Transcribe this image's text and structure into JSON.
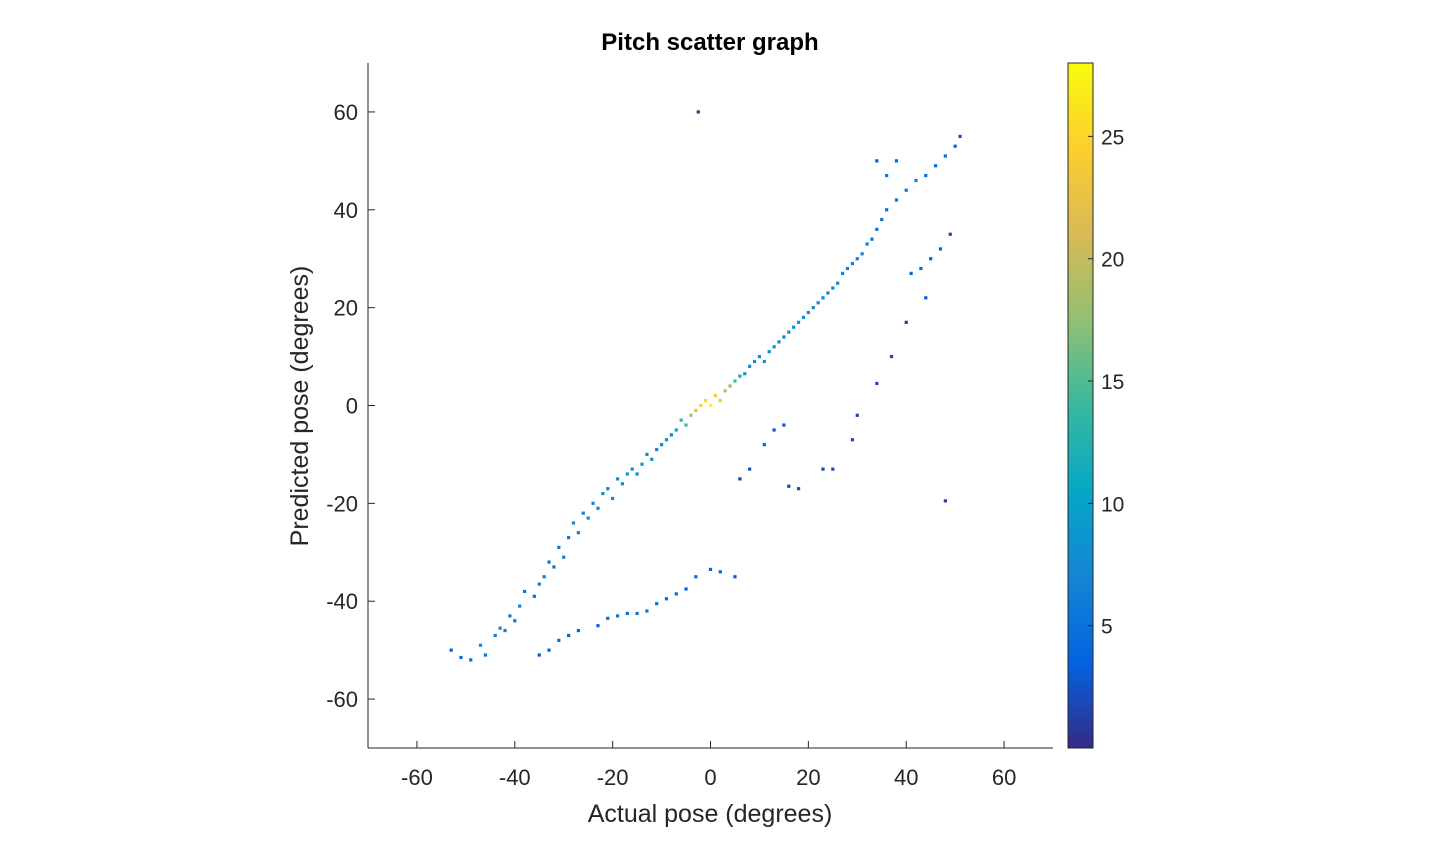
{
  "chart_data": {
    "type": "scatter",
    "title": "Pitch scatter graph",
    "xlabel": "Actual pose (degrees)",
    "ylabel": "Predicted pose (degrees)",
    "xlim": [
      -70,
      70
    ],
    "ylim": [
      -70,
      70
    ],
    "xticks": [
      -60,
      -40,
      -20,
      0,
      20,
      40,
      60
    ],
    "yticks": [
      -60,
      -40,
      -20,
      0,
      20,
      40,
      60
    ],
    "grid": false,
    "colorbar": {
      "colormap": "parula",
      "range": [
        0,
        28
      ],
      "ticks": [
        5,
        10,
        15,
        20,
        25
      ],
      "colors": [
        "#352a87",
        "#0363e1",
        "#1485d4",
        "#06a7c6",
        "#38b99e",
        "#92bf73",
        "#d9ba56",
        "#fcce2e",
        "#f9fb0e"
      ]
    },
    "series": [
      {
        "description": "dense main cluster along y = x, density encoded by color",
        "points": [
          [
            -53,
            -50
          ],
          [
            -51,
            -51.5
          ],
          [
            -49,
            -52
          ],
          [
            -47,
            -49
          ],
          [
            -46,
            -51
          ],
          [
            -44,
            -47
          ],
          [
            -43,
            -45.5
          ],
          [
            -42,
            -46
          ],
          [
            -41,
            -43
          ],
          [
            -40,
            -44
          ],
          [
            -39,
            -41
          ],
          [
            -38,
            -38
          ],
          [
            -36,
            -39
          ],
          [
            -35,
            -36.5
          ],
          [
            -34,
            -35
          ],
          [
            -33,
            -32
          ],
          [
            -32,
            -33
          ],
          [
            -31,
            -29
          ],
          [
            -30,
            -31
          ],
          [
            -29,
            -27
          ],
          [
            -28,
            -24
          ],
          [
            -27,
            -26
          ],
          [
            -26,
            -22
          ],
          [
            -25,
            -23
          ],
          [
            -24,
            -20
          ],
          [
            -23,
            -21
          ],
          [
            -22,
            -18
          ],
          [
            -21,
            -17
          ],
          [
            -20,
            -19
          ],
          [
            -19,
            -15
          ],
          [
            -18,
            -16
          ],
          [
            -17,
            -14
          ],
          [
            -16,
            -13
          ],
          [
            -15,
            -14
          ],
          [
            -14,
            -12
          ],
          [
            -13,
            -10
          ],
          [
            -12,
            -11
          ],
          [
            -11,
            -9
          ],
          [
            -10,
            -8
          ],
          [
            -9,
            -7
          ],
          [
            -8,
            -6
          ],
          [
            -7,
            -5
          ],
          [
            -6,
            -3
          ],
          [
            -5,
            -4
          ],
          [
            -4,
            -2
          ],
          [
            -3,
            -1
          ],
          [
            -2,
            0
          ],
          [
            -1,
            1
          ],
          [
            0,
            0
          ],
          [
            1,
            2
          ],
          [
            2,
            1
          ],
          [
            3,
            3
          ],
          [
            4,
            4
          ],
          [
            5,
            5
          ],
          [
            6,
            6
          ],
          [
            7,
            6.5
          ],
          [
            8,
            8
          ],
          [
            9,
            9
          ],
          [
            10,
            10
          ],
          [
            11,
            9
          ],
          [
            12,
            11
          ],
          [
            13,
            12
          ],
          [
            14,
            13
          ],
          [
            15,
            14
          ],
          [
            16,
            15
          ],
          [
            17,
            16
          ],
          [
            18,
            17
          ],
          [
            19,
            18
          ],
          [
            20,
            19
          ],
          [
            21,
            20
          ],
          [
            22,
            21
          ],
          [
            23,
            22
          ],
          [
            24,
            23
          ],
          [
            25,
            24
          ],
          [
            26,
            25
          ],
          [
            27,
            27
          ],
          [
            28,
            28
          ],
          [
            29,
            29
          ],
          [
            30,
            30
          ],
          [
            31,
            31
          ],
          [
            32,
            33
          ],
          [
            33,
            34
          ],
          [
            34,
            36
          ],
          [
            35,
            38
          ],
          [
            36,
            40
          ],
          [
            38,
            42
          ],
          [
            40,
            44
          ],
          [
            42,
            46
          ],
          [
            44,
            47
          ],
          [
            46,
            49
          ],
          [
            48,
            51
          ],
          [
            50,
            53
          ],
          [
            51,
            55
          ],
          [
            49,
            35
          ],
          [
            47,
            32
          ],
          [
            45,
            30
          ],
          [
            43,
            28
          ],
          [
            41,
            27
          ],
          [
            36,
            47
          ],
          [
            38,
            50
          ],
          [
            34,
            50
          ]
        ]
      },
      {
        "description": "outlier points",
        "points": [
          [
            -2.5,
            60
          ],
          [
            48,
            -19.5
          ],
          [
            0,
            -33.5
          ],
          [
            2,
            -34
          ],
          [
            5,
            -35
          ],
          [
            -3,
            -35
          ],
          [
            -5,
            -37.5
          ],
          [
            -7,
            -38.5
          ],
          [
            -9,
            -39.5
          ],
          [
            -11,
            -40.5
          ],
          [
            -13,
            -42
          ],
          [
            -15,
            -42.5
          ],
          [
            -17,
            -42.5
          ],
          [
            -19,
            -43
          ],
          [
            -21,
            -43.5
          ],
          [
            -23,
            -45
          ],
          [
            -27,
            -46
          ],
          [
            -29,
            -47
          ],
          [
            -31,
            -48
          ],
          [
            -33,
            -50
          ],
          [
            -35,
            -51
          ],
          [
            16,
            -16.5
          ],
          [
            18,
            -17
          ],
          [
            23,
            -13
          ],
          [
            25,
            -13
          ],
          [
            29,
            -7
          ],
          [
            30,
            -2
          ],
          [
            34,
            4.5
          ],
          [
            37,
            10
          ],
          [
            40,
            17
          ],
          [
            44,
            22
          ],
          [
            11,
            -8
          ],
          [
            13,
            -5
          ],
          [
            15,
            -4
          ],
          [
            6,
            -15
          ],
          [
            8,
            -13
          ]
        ]
      }
    ]
  }
}
